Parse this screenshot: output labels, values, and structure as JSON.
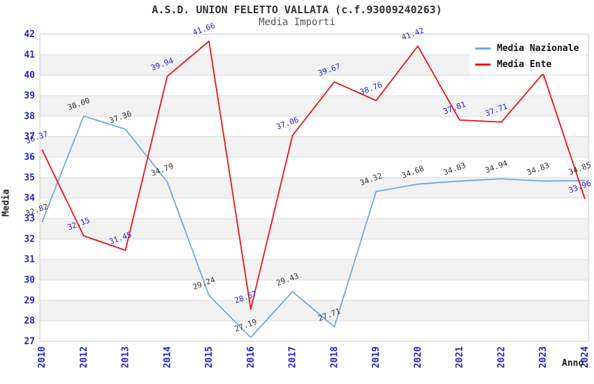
{
  "chart_data": {
    "type": "line",
    "title": "A.S.D. UNION FELETTO VALLATA (c.f.93009240263)",
    "subtitle": "Media Importi",
    "xlabel": "Anno",
    "ylabel": "Media",
    "ylim": [
      27,
      42
    ],
    "y_ticks": [
      42,
      41,
      40,
      39,
      38,
      37,
      36,
      35,
      34,
      33,
      32,
      31,
      30,
      29,
      28,
      27
    ],
    "grid": "horizontal",
    "band_shading": "alternating",
    "legend_position": "top-right",
    "categories": [
      "2010",
      "2012",
      "2013",
      "2014",
      "2015",
      "2016",
      "2017",
      "2018",
      "2019",
      "2020",
      "2021",
      "2022",
      "2023",
      "2024"
    ],
    "series": [
      {
        "name": "Media Nazionale",
        "color": "#72a9dd",
        "label_color": "#333333",
        "values": [
          32.82,
          38.0,
          37.36,
          34.79,
          29.24,
          27.19,
          29.43,
          27.71,
          34.32,
          34.68,
          34.83,
          34.94,
          34.83,
          34.85
        ],
        "labels": [
          "32.82",
          "38.00",
          "37.36",
          "34.79",
          "29.24",
          "27.19",
          "29.43",
          "27.71",
          "34.32",
          "34.68",
          "34.83",
          "34.94",
          "34.83",
          "34.85"
        ]
      },
      {
        "name": "Media Ente",
        "color": "#ee1313",
        "label_color": "#2424c8",
        "values": [
          36.37,
          32.15,
          31.45,
          39.94,
          41.66,
          28.57,
          37.06,
          39.67,
          38.76,
          41.42,
          37.81,
          37.71,
          40.08,
          33.96
        ],
        "labels": [
          "36.37",
          "32.15",
          "31.45",
          "39.94",
          "41.66",
          "28.57",
          "37.06",
          "39.67",
          "38.76",
          "41.42",
          "37.81",
          "37.71",
          null,
          "33.96"
        ]
      }
    ],
    "colors": {
      "band": "#f2f2f2",
      "grid_line": "#dcdcdc",
      "plot_border": "#c8c8c8",
      "tick_label": "#2424c8",
      "title": "#333333",
      "subtitle": "#555555"
    }
  }
}
